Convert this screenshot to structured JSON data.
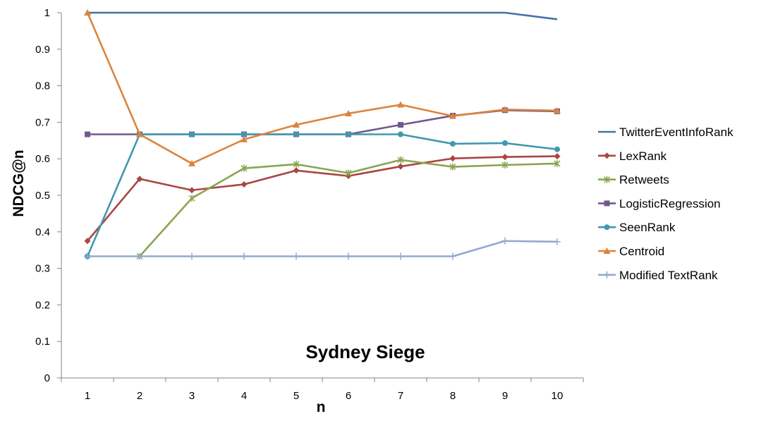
{
  "chart_data": {
    "type": "line",
    "title": "Sydney Siege",
    "xlabel": "n",
    "ylabel": "NDCG@n",
    "x": [
      1,
      2,
      3,
      4,
      5,
      6,
      7,
      8,
      9,
      10
    ],
    "ylim": [
      0,
      1
    ],
    "yticks": [
      "0",
      "0.1",
      "0.2",
      "0.3",
      "0.4",
      "0.5",
      "0.6",
      "0.7",
      "0.8",
      "0.9",
      "1"
    ],
    "grid": false,
    "legend_position": "right",
    "series": [
      {
        "name": "TwitterEventInfoRank",
        "color": "#4572A7",
        "marker": "none",
        "values": [
          1,
          1,
          1,
          1,
          1,
          1,
          1,
          1,
          1,
          0.982
        ]
      },
      {
        "name": "LexRank",
        "color": "#AA4643",
        "marker": "diamond",
        "values": [
          0.375,
          0.545,
          0.514,
          0.53,
          0.568,
          0.553,
          0.579,
          0.601,
          0.605,
          0.607
        ]
      },
      {
        "name": "Retweets",
        "color": "#89A54E",
        "marker": "star",
        "values": [
          null,
          0.333,
          0.492,
          0.574,
          0.585,
          0.561,
          0.597,
          0.578,
          0.583,
          0.587
        ]
      },
      {
        "name": "LogisticRegression",
        "color": "#71588F",
        "marker": "square",
        "values": [
          0.667,
          0.667,
          0.667,
          0.667,
          0.667,
          0.667,
          0.693,
          0.718,
          0.733,
          0.73
        ]
      },
      {
        "name": "SeenRank",
        "color": "#4198AF",
        "marker": "circle",
        "values": [
          0.333,
          0.667,
          0.667,
          0.667,
          0.667,
          0.667,
          0.667,
          0.641,
          0.643,
          0.626
        ]
      },
      {
        "name": "Centroid",
        "color": "#DB843D",
        "marker": "triangle",
        "values": [
          1,
          0.667,
          0.587,
          0.653,
          0.693,
          0.724,
          0.748,
          0.717,
          0.735,
          0.732
        ]
      },
      {
        "name": "Modified TextRank",
        "color": "#93A9CF",
        "marker": "plus",
        "values": [
          0.333,
          0.333,
          0.333,
          0.333,
          0.333,
          0.333,
          0.333,
          0.333,
          0.375,
          0.373
        ]
      }
    ]
  }
}
